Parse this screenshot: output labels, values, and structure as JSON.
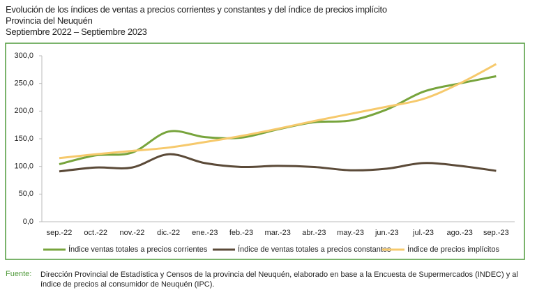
{
  "chart_data": {
    "type": "line",
    "title": "Evolución de los índices de ventas a precios corrientes y constantes y del índice de precios implícito",
    "subtitle": "Provincia del Neuquén",
    "period": "Septiembre 2022 – Septiembre 2023",
    "categories": [
      "sep.-22",
      "oct.-22",
      "nov.-22",
      "dic.-22",
      "ene.-23",
      "feb.-23",
      "mar.-23",
      "abr.-23",
      "may.-23",
      "jun.-23",
      "jul.-23",
      "ago.-23",
      "sep.-23"
    ],
    "series": [
      {
        "name": "Índice ventas totales a precios corrientes",
        "color": "#77a43c",
        "values": [
          104,
          120,
          125,
          163,
          153,
          152,
          167,
          180,
          183,
          203,
          235,
          250,
          263
        ]
      },
      {
        "name": "Índice de ventas totales a precios constantes",
        "color": "#5b4a38",
        "values": [
          91,
          98,
          98,
          122,
          106,
          99,
          101,
          99,
          93,
          96,
          106,
          101,
          92
        ]
      },
      {
        "name": "Índice de precios implícitos",
        "color": "#f6c96c",
        "values": [
          115,
          122,
          128,
          134,
          144,
          155,
          168,
          182,
          195,
          208,
          222,
          250,
          285
        ]
      }
    ],
    "ylim": [
      0,
      300
    ],
    "yticks": [
      {
        "value": 0,
        "label": "0,0"
      },
      {
        "value": 50,
        "label": "50,0"
      },
      {
        "value": 100,
        "label": "100,0"
      },
      {
        "value": 150,
        "label": "150,0"
      },
      {
        "value": 200,
        "label": "200,0"
      },
      {
        "value": 250,
        "label": "250,0"
      },
      {
        "value": 300,
        "label": "300,0"
      }
    ],
    "grid": false,
    "source_label": "Fuente:",
    "source": "Dirección Provincial de Estadística y Censos de la provincia del Neuquén, elaborado en base a la Encuesta de Supermercados (INDEC) y al índice de precios al consumidor de Neuquén (IPC)."
  }
}
